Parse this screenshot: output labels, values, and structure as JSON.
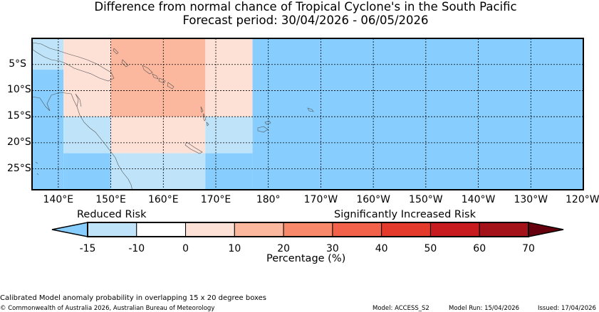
{
  "title": {
    "line1": "Difference from normal chance of Tropical Cyclone's in the South Pacific",
    "line2": "Forecast period: 30/04/2026 - 06/05/2026"
  },
  "map": {
    "y_labels": [
      "5°S",
      "10°S",
      "15°S",
      "20°S",
      "25°S"
    ],
    "x_labels": [
      "140°E",
      "150°E",
      "160°E",
      "170°E",
      "180°",
      "170°W",
      "160°W",
      "150°W",
      "140°W",
      "130°W",
      "120°W"
    ],
    "lon_range": [
      135,
      240
    ],
    "lat_range": [
      0,
      -29
    ],
    "cells": [
      {
        "lon0": 135,
        "lon1": 141,
        "lat0": 0,
        "lat1": -6,
        "category": "-15"
      },
      {
        "lon0": 135,
        "lon1": 141,
        "lat0": -6,
        "lat1": -29,
        "category": "<-15"
      },
      {
        "lon0": 141,
        "lon1": 150,
        "lat0": 0,
        "lat1": -15,
        "category": "0"
      },
      {
        "lon0": 141,
        "lon1": 150,
        "lat0": -15,
        "lat1": -22,
        "category": "-15"
      },
      {
        "lon0": 141,
        "lon1": 150,
        "lat0": -22,
        "lat1": -29,
        "category": "<-15"
      },
      {
        "lon0": 150,
        "lon1": 168,
        "lat0": 0,
        "lat1": -15,
        "category": "10"
      },
      {
        "lon0": 150,
        "lon1": 168,
        "lat0": -15,
        "lat1": -22,
        "category": "0"
      },
      {
        "lon0": 150,
        "lon1": 168,
        "lat0": -22,
        "lat1": -29,
        "category": "-15"
      },
      {
        "lon0": 168,
        "lon1": 177,
        "lat0": 0,
        "lat1": -15,
        "category": "0"
      },
      {
        "lon0": 168,
        "lon1": 177,
        "lat0": -15,
        "lat1": -22,
        "category": "-15"
      },
      {
        "lon0": 168,
        "lon1": 177,
        "lat0": -22,
        "lat1": -29,
        "category": "<-15"
      },
      {
        "lon0": 177,
        "lon1": 240,
        "lat0": 0,
        "lat1": -29,
        "category": "<-15"
      }
    ]
  },
  "legend": {
    "reduced_label": "Reduced Risk",
    "increased_label": "Significantly Increased Risk",
    "ticks": [
      "-15",
      "-10",
      "0",
      "10",
      "20",
      "30",
      "40",
      "50",
      "60",
      "70"
    ],
    "xlabel": "Percentage (%)",
    "colors": {
      "under": "#87ceff",
      "bins": [
        "#bfe4fa",
        "#ffffff",
        "#fde0d6",
        "#fbb89f",
        "#f8896a",
        "#f26149",
        "#e33a2c",
        "#c81b20",
        "#a31218"
      ],
      "over": "#67000d"
    }
  },
  "footer": {
    "note": "Calibrated Model anomaly probability in overlapping 15 x 20 degree boxes",
    "copyright": "© Commonwealth of Australia 2026, Australian Bureau of Meteorology",
    "model": "Model: ACCESS_S2",
    "model_run": "Model Run: 15/04/2026",
    "issued": "Issued: 17/04/2026"
  }
}
